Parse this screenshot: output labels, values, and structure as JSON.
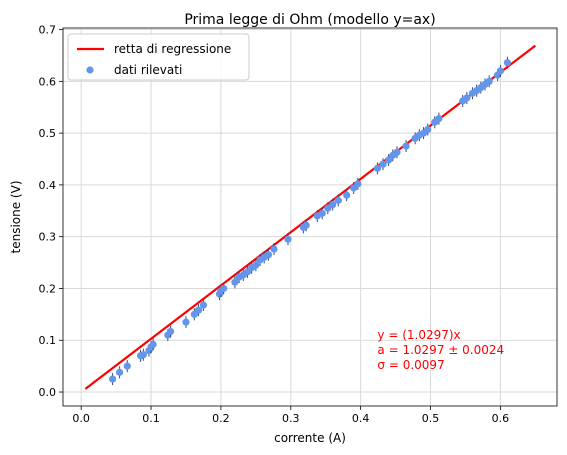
{
  "chart_data": {
    "type": "scatter",
    "title": "Prima legge di Ohm (modello y=ax)",
    "xlabel": "corrente (A)",
    "ylabel": "tensione (V)",
    "xlim": [
      -0.026,
      0.681
    ],
    "ylim": [
      -0.027,
      0.703
    ],
    "xticks": [
      0.0,
      0.1,
      0.2,
      0.3,
      0.4,
      0.5,
      0.6
    ],
    "xtick_labels": [
      "0.0",
      "0.1",
      "0.2",
      "0.3",
      "0.4",
      "0.5",
      "0.6"
    ],
    "yticks": [
      0.0,
      0.1,
      0.2,
      0.3,
      0.4,
      0.5,
      0.6,
      0.7
    ],
    "ytick_labels": [
      "0.0",
      "0.1",
      "0.2",
      "0.3",
      "0.4",
      "0.5",
      "0.6",
      "0.7"
    ],
    "grid": true,
    "legend_position": "upper-left",
    "series": [
      {
        "name": "retta di regressione",
        "kind": "line",
        "color": "#ff0000",
        "x": [
          0.006,
          0.65
        ],
        "y": [
          0.006,
          0.669
        ]
      },
      {
        "name": "dati rilevati",
        "kind": "scatter",
        "color": "#6495ed",
        "x": [
          0.045,
          0.055,
          0.066,
          0.085,
          0.089,
          0.097,
          0.1,
          0.103,
          0.124,
          0.128,
          0.15,
          0.162,
          0.168,
          0.175,
          0.198,
          0.2,
          0.204,
          0.22,
          0.226,
          0.232,
          0.238,
          0.244,
          0.25,
          0.256,
          0.262,
          0.268,
          0.276,
          0.296,
          0.318,
          0.322,
          0.338,
          0.345,
          0.353,
          0.36,
          0.368,
          0.38,
          0.39,
          0.396,
          0.424,
          0.432,
          0.44,
          0.446,
          0.452,
          0.465,
          0.478,
          0.484,
          0.49,
          0.496,
          0.506,
          0.512,
          0.546,
          0.552,
          0.56,
          0.566,
          0.572,
          0.578,
          0.584,
          0.596,
          0.6,
          0.61
        ],
        "y": [
          0.025,
          0.038,
          0.05,
          0.07,
          0.072,
          0.08,
          0.087,
          0.092,
          0.11,
          0.117,
          0.135,
          0.15,
          0.158,
          0.168,
          0.189,
          0.195,
          0.2,
          0.212,
          0.222,
          0.226,
          0.232,
          0.24,
          0.245,
          0.255,
          0.26,
          0.265,
          0.276,
          0.295,
          0.318,
          0.322,
          0.34,
          0.345,
          0.355,
          0.362,
          0.37,
          0.38,
          0.394,
          0.402,
          0.432,
          0.44,
          0.448,
          0.457,
          0.463,
          0.475,
          0.49,
          0.496,
          0.5,
          0.507,
          0.521,
          0.528,
          0.562,
          0.568,
          0.577,
          0.582,
          0.588,
          0.594,
          0.6,
          0.612,
          0.62,
          0.636
        ]
      }
    ],
    "annotation": {
      "color": "#ff0000",
      "lines": [
        "y = (1.0297)x",
        "a = 1.0297 ± 0.0024",
        "σ =  0.0097"
      ],
      "x": 0.424,
      "y": 0.11
    }
  }
}
